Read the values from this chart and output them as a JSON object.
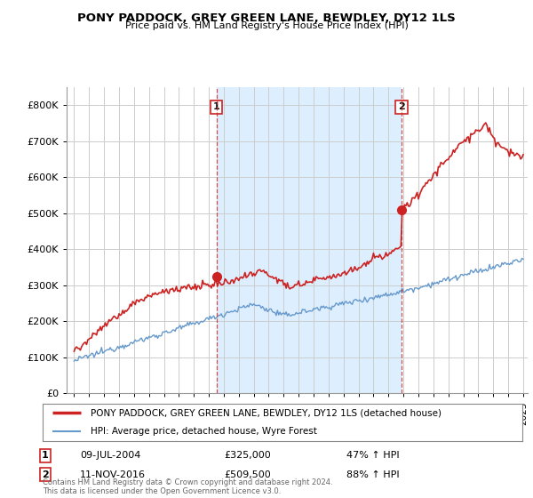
{
  "title": "PONY PADDOCK, GREY GREEN LANE, BEWDLEY, DY12 1LS",
  "subtitle": "Price paid vs. HM Land Registry's House Price Index (HPI)",
  "ylabel_values": [
    "£0",
    "£100K",
    "£200K",
    "£300K",
    "£400K",
    "£500K",
    "£600K",
    "£700K",
    "£800K"
  ],
  "ylim": [
    0,
    850000
  ],
  "yticks": [
    0,
    100000,
    200000,
    300000,
    400000,
    500000,
    600000,
    700000,
    800000
  ],
  "xlim_start": 1994.5,
  "xlim_end": 2025.3,
  "sale1_x": 2004.52,
  "sale1_y": 325000,
  "sale2_x": 2016.87,
  "sale2_y": 509500,
  "legend_line1": "PONY PADDOCK, GREY GREEN LANE, BEWDLEY, DY12 1LS (detached house)",
  "legend_line2": "HPI: Average price, detached house, Wyre Forest",
  "ann1_date": "09-JUL-2004",
  "ann1_price": "£325,000",
  "ann1_hpi": "47% ↑ HPI",
  "ann2_date": "11-NOV-2016",
  "ann2_price": "£509,500",
  "ann2_hpi": "88% ↑ HPI",
  "footer": "Contains HM Land Registry data © Crown copyright and database right 2024.\nThis data is licensed under the Open Government Licence v3.0.",
  "red_color": "#cc2222",
  "blue_color": "#6699cc",
  "shade_color": "#ddeeff",
  "background_color": "#ffffff",
  "grid_color": "#cccccc"
}
